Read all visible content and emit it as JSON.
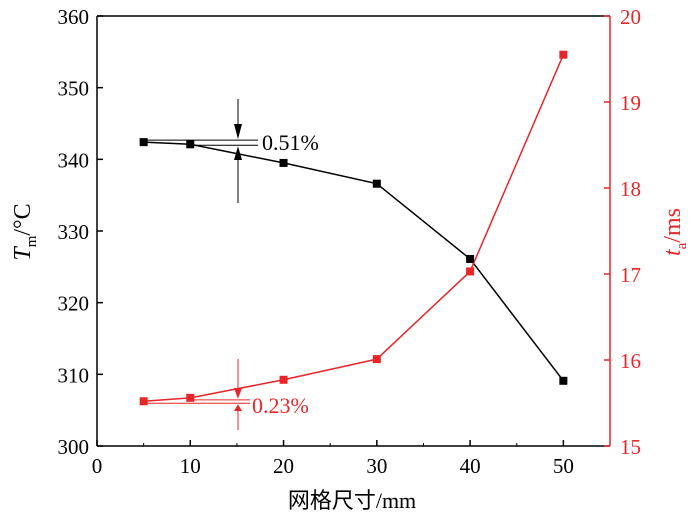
{
  "chart_data": {
    "type": "line",
    "xlabel": "网格尺寸/mm",
    "ylabel_left": {
      "main": "T",
      "sub": "m",
      "unit": "/°C"
    },
    "ylabel_right": {
      "main": "t",
      "sub": "a",
      "unit": "/ms"
    },
    "xlim": [
      0,
      55
    ],
    "ylim_left": [
      300,
      360
    ],
    "ylim_right": [
      15,
      20
    ],
    "xticks": [
      0,
      10,
      20,
      30,
      40,
      50
    ],
    "yticks_left": [
      300,
      310,
      320,
      330,
      340,
      350,
      360
    ],
    "yticks_right": [
      15,
      16,
      17,
      18,
      19,
      20
    ],
    "series": [
      {
        "name": "Tm",
        "axis": "left",
        "color": "#000000",
        "x": [
          5,
          10,
          20,
          30,
          40,
          50
        ],
        "values": [
          342.4,
          342.1,
          339.5,
          336.6,
          326.1,
          309.1
        ]
      },
      {
        "name": "ta",
        "axis": "right",
        "color": "#e8262a",
        "x": [
          5,
          10,
          20,
          30,
          40,
          50
        ],
        "values": [
          15.52,
          15.56,
          15.77,
          16.01,
          17.03,
          19.55
        ]
      }
    ],
    "annotations": [
      {
        "text": "0.51%",
        "color": "#000000"
      },
      {
        "text": "0.23%",
        "color": "#e8262a"
      }
    ]
  }
}
